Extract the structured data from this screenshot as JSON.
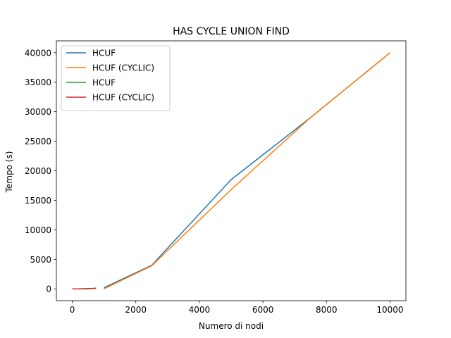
{
  "chart_data": {
    "type": "line",
    "title": "HAS CYCLE UNION FIND",
    "xlabel": "Numero di nodi",
    "ylabel": "Tempo (s)",
    "xlim": [
      -500,
      10500
    ],
    "ylim": [
      -2000,
      42000
    ],
    "xticks": [
      0,
      2000,
      4000,
      6000,
      8000,
      10000
    ],
    "yticks": [
      0,
      5000,
      10000,
      15000,
      20000,
      25000,
      30000,
      35000,
      40000
    ],
    "legend_position": "top-left",
    "series": [
      {
        "name": "HCUF",
        "color": "#1f77b4",
        "x": [
          1000,
          2500,
          5000,
          7500,
          10000
        ],
        "y": [
          200,
          4000,
          18500,
          29000,
          40000
        ]
      },
      {
        "name": "HCUF (CYCLIC)",
        "color": "#ff7f0e",
        "x": [
          1000,
          2500,
          5000,
          7500,
          10000
        ],
        "y": [
          0,
          3900,
          16800,
          29000,
          40000
        ]
      },
      {
        "name": "HCUF",
        "color": "#2ca02c",
        "x": [
          0,
          100,
          200,
          300,
          400,
          500,
          600,
          700,
          750
        ],
        "y": [
          0,
          0,
          5,
          10,
          20,
          35,
          60,
          90,
          120
        ]
      },
      {
        "name": "HCUF (CYCLIC)",
        "color": "#d62728",
        "x": [
          0,
          100,
          200,
          300,
          400,
          500,
          600,
          700,
          750
        ],
        "y": [
          0,
          0,
          5,
          10,
          20,
          35,
          60,
          90,
          120
        ]
      }
    ]
  }
}
